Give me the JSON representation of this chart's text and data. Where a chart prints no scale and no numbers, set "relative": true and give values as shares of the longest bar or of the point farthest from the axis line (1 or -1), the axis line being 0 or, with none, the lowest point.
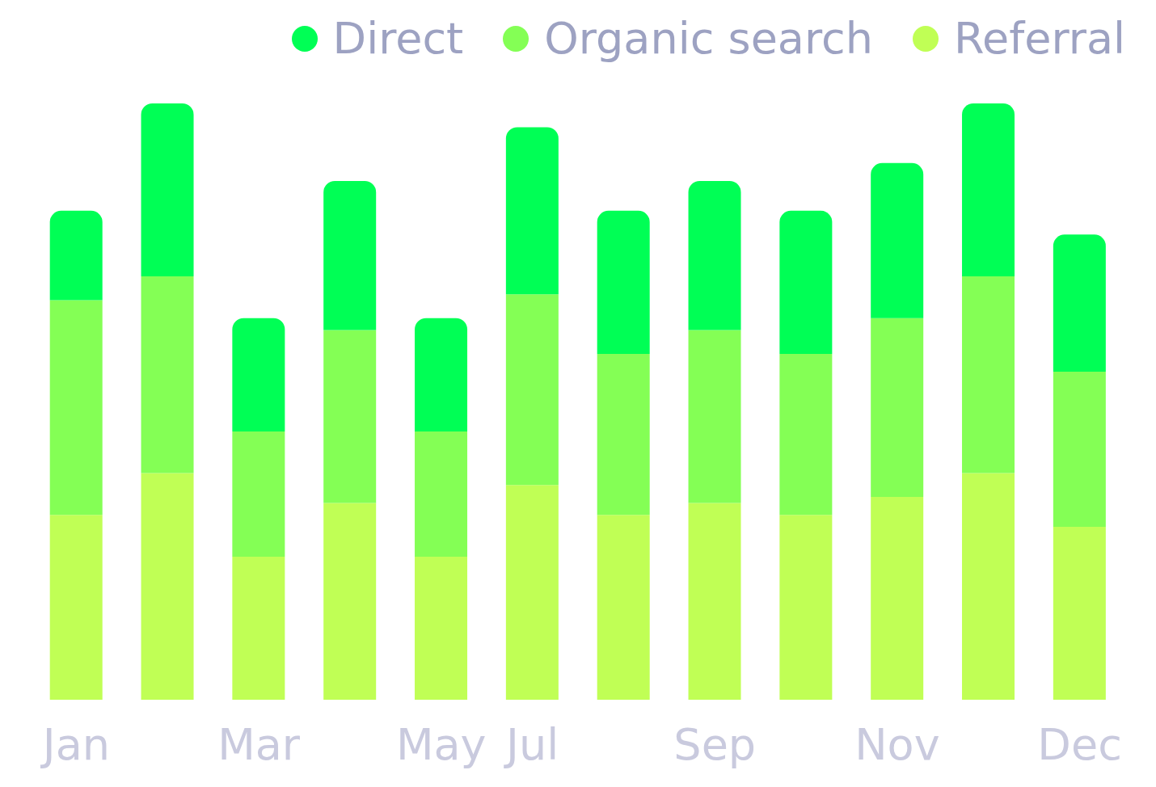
{
  "chart_data": {
    "type": "bar",
    "relative": true,
    "stacked": true,
    "legend": "top right",
    "grid": false,
    "categories": [
      "Jan",
      null,
      "Mar",
      null,
      "May",
      "Jul",
      null,
      "Sep",
      null,
      "Nov",
      null,
      "Dec"
    ],
    "series": [
      {
        "name": "Referral",
        "color": "#c0ff55",
        "values": [
          0.31,
          0.38,
          0.24,
          0.33,
          0.24,
          0.36,
          0.31,
          0.33,
          0.31,
          0.34,
          0.38,
          0.29
        ]
      },
      {
        "name": "Organic search",
        "color": "#84ff55",
        "values": [
          0.36,
          0.33,
          0.21,
          0.29,
          0.21,
          0.32,
          0.27,
          0.29,
          0.27,
          0.3,
          0.33,
          0.26
        ]
      },
      {
        "name": "Direct",
        "color": "#00ff55",
        "values": [
          0.15,
          0.29,
          0.19,
          0.25,
          0.19,
          0.28,
          0.24,
          0.25,
          0.24,
          0.26,
          0.29,
          0.23
        ]
      }
    ]
  }
}
